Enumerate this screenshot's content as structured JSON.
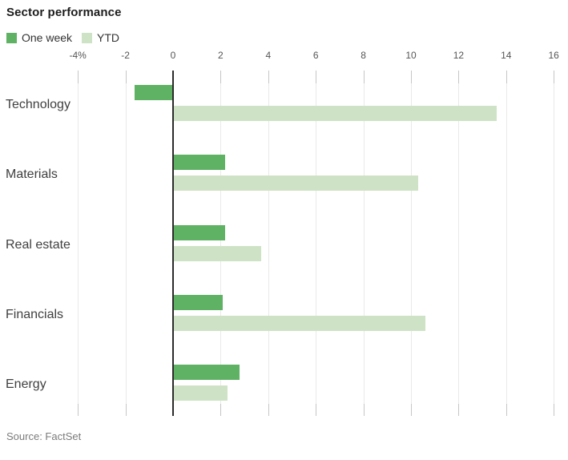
{
  "title": "Sector performance",
  "legend": {
    "items": [
      {
        "label": "One week",
        "color": "#5fb163"
      },
      {
        "label": "YTD",
        "color": "#cee3c6"
      }
    ]
  },
  "source": "Source: FactSet",
  "colors": {
    "one_week": "#5fb163",
    "ytd": "#cee3c6",
    "zero_line": "#2b2b2b",
    "gridline": "#e9e9e9",
    "tick": "#c6c6c6",
    "axis_text": "#555555",
    "category_text": "#3f3f3f",
    "title_text": "#1c1c1c",
    "source_text": "#7b7b7b"
  },
  "chart_data": {
    "type": "bar",
    "orientation": "horizontal",
    "title": "Sector performance",
    "categories": [
      "Technology",
      "Materials",
      "Real estate",
      "Financials",
      "Energy"
    ],
    "series": [
      {
        "name": "One week",
        "color": "#5fb163",
        "values": [
          -1.6,
          2.2,
          2.2,
          2.1,
          2.8
        ]
      },
      {
        "name": "YTD",
        "color": "#cee3c6",
        "values": [
          13.6,
          10.3,
          3.7,
          10.6,
          2.3
        ]
      }
    ],
    "unit": "percent",
    "xlim": [
      -4,
      16
    ],
    "x_ticks": [
      -4,
      -2,
      0,
      2,
      4,
      6,
      8,
      10,
      12,
      14,
      16
    ],
    "x_tick_labels": [
      "-4%",
      "-2",
      "0",
      "2",
      "4",
      "6",
      "8",
      "10",
      "12",
      "14",
      "16"
    ],
    "grid": true,
    "legend_position": "top-left",
    "source": "Source: FactSet"
  }
}
